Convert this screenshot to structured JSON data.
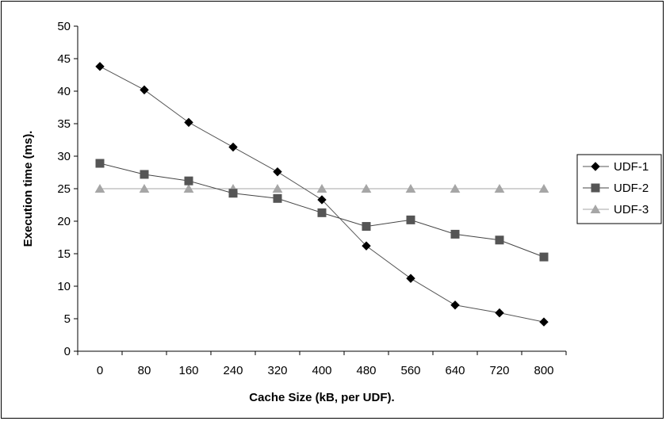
{
  "chart_data": {
    "type": "line",
    "title": "",
    "xlabel": "Cache Size (kB, per UDF).",
    "ylabel": "Execution time (ms).",
    "ylim": [
      0,
      50
    ],
    "yticks": [
      "0",
      "5",
      "10",
      "15",
      "20",
      "25",
      "30",
      "35",
      "40",
      "45",
      "50"
    ],
    "categories": [
      "0",
      "80",
      "160",
      "240",
      "320",
      "400",
      "480",
      "560",
      "640",
      "720",
      "800"
    ],
    "grid": false,
    "legend_position": "right",
    "series": [
      {
        "name": "UDF-1",
        "marker": "diamond",
        "color": "#000000",
        "line_color": "#555555",
        "values": [
          43.8,
          40.2,
          35.2,
          31.4,
          27.6,
          23.3,
          16.2,
          11.2,
          7.1,
          5.9,
          4.5
        ]
      },
      {
        "name": "UDF-2",
        "marker": "square",
        "color": "#555555",
        "line_color": "#444444",
        "values": [
          28.9,
          27.2,
          26.2,
          24.3,
          23.5,
          21.3,
          19.2,
          20.2,
          18.0,
          17.1,
          14.5
        ]
      },
      {
        "name": "UDF-3",
        "marker": "triangle",
        "color": "#a6a6a6",
        "line_color": "#a6a6a6",
        "values": [
          25.0,
          25.0,
          25.0,
          25.0,
          25.0,
          25.0,
          25.0,
          25.0,
          25.0,
          25.0,
          25.0
        ]
      }
    ]
  }
}
